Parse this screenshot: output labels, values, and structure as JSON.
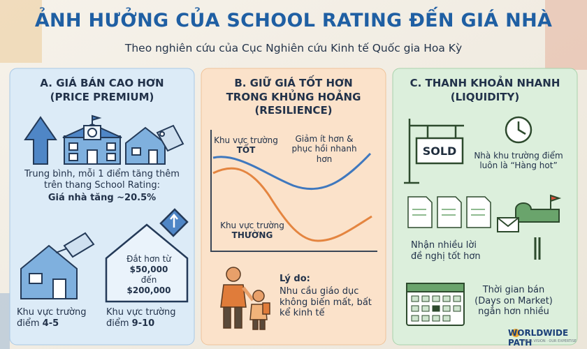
{
  "header": {
    "title": "ẢNH HƯỞNG CỦA SCHOOL RATING ĐẾN GIÁ NHÀ",
    "subtitle": "Theo nghiên cứu của Cục Nghiên cứu Kinh tế Quốc gia Hoa Kỳ"
  },
  "panel_a": {
    "title": [
      "A. GIÁ BÁN CAO HƠN",
      "(PRICE PREMIUM)"
    ],
    "body": "Trung bình, mỗi 1 điểm tăng thêm trên thang School Rating:",
    "highlight": "Giá nhà tăng ~20.5%",
    "tag": [
      "Đắt hơn từ",
      "$50,000",
      "đến",
      "$200,000"
    ],
    "captions": [
      {
        "text": "Khu vực trường điểm",
        "strong": "4-5"
      },
      {
        "text": "Khu vực trường điểm",
        "strong": "9-10"
      }
    ]
  },
  "panel_b": {
    "title": [
      "B. GIỮ GIÁ TỐT HƠN",
      "TRONG KHỦNG HOẢNG",
      "(RESILIENCE)"
    ],
    "good_label": "Khu vực trường",
    "good_strong": "TỐT",
    "note": "Giảm ít hơn & phục hồi nhanh hơn",
    "normal_label": "Khu vực trường",
    "normal_strong": "THƯỜNG",
    "reason_title": "Lý do:",
    "reason": "Nhu cầu giáo dục không biến mất, bất kể kinh tế"
  },
  "panel_c": {
    "title": [
      "C. THANH KHOẢN NHANH",
      "(LIQUIDITY)"
    ],
    "sign": "SOLD",
    "items": [
      "Nhà khu trường điểm luôn là “Hàng hot”",
      "Nhận nhiều lời đề nghị tốt hơn",
      "Thời gian bán (Days on Market) ngắn hơn nhiều"
    ]
  },
  "logo": {
    "name": "WORLDWIDE PATH",
    "tagline": "YOUR VISION · OUR EXPERTISE"
  }
}
